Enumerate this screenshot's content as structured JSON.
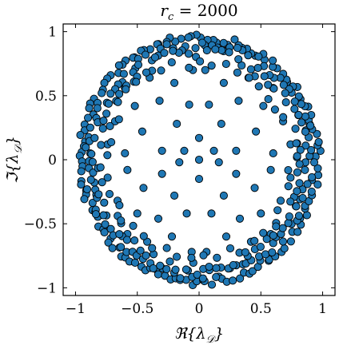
{
  "chart_data": {
    "type": "scatter",
    "title": "r_c = 2000",
    "title_parts": {
      "var": "r",
      "sub": "c",
      "rest": " = 2000"
    },
    "xlabel": "ℜ{λ_𝒟}",
    "xlabel_parts": {
      "op": "ℜ{",
      "var": "λ",
      "sub": "𝒟",
      "close": "}"
    },
    "ylabel": "ℑ{λ_𝒟}",
    "ylabel_parts": {
      "op": "ℑ{",
      "var": "λ",
      "sub": "𝒟",
      "close": "}"
    },
    "xlim": [
      -1.1,
      1.1
    ],
    "ylim": [
      -1.06,
      1.06
    ],
    "xticks": [
      -1,
      -0.5,
      0,
      0.5,
      1
    ],
    "xtick_labels": [
      "−1",
      "−0.5",
      "0",
      "0.5",
      "1"
    ],
    "yticks": [
      -1,
      -0.5,
      0,
      0.5,
      1
    ],
    "ytick_labels": [
      "−1",
      "−0.5",
      "0",
      "0.5",
      "1"
    ],
    "grid": false,
    "marker_color": "#1f77b4",
    "marker_edge": "#000000",
    "points": [
      [
        0.0,
        0.0
      ],
      [
        0.12,
        0.07
      ],
      [
        -0.12,
        0.07
      ],
      [
        0.16,
        -0.02
      ],
      [
        -0.16,
        -0.02
      ],
      [
        0.0,
        0.17
      ],
      [
        0.0,
        -0.15
      ],
      [
        0.3,
        0.07
      ],
      [
        -0.3,
        0.07
      ],
      [
        0.3,
        -0.11
      ],
      [
        -0.3,
        -0.11
      ],
      [
        0.18,
        0.28
      ],
      [
        -0.18,
        0.28
      ],
      [
        0.2,
        -0.28
      ],
      [
        -0.2,
        -0.28
      ],
      [
        0.46,
        0.22
      ],
      [
        -0.46,
        0.22
      ],
      [
        0.45,
        -0.22
      ],
      [
        -0.45,
        -0.22
      ],
      [
        0.08,
        0.43
      ],
      [
        -0.08,
        0.43
      ],
      [
        0.1,
        -0.42
      ],
      [
        -0.1,
        -0.42
      ],
      [
        0.32,
        0.46
      ],
      [
        -0.32,
        0.46
      ],
      [
        0.33,
        -0.46
      ],
      [
        -0.33,
        -0.46
      ],
      [
        0.6,
        0.05
      ],
      [
        -0.6,
        0.05
      ],
      [
        0.58,
        -0.08
      ],
      [
        -0.58,
        -0.08
      ],
      [
        0.2,
        0.6
      ],
      [
        -0.2,
        0.6
      ],
      [
        0.22,
        -0.6
      ],
      [
        -0.22,
        -0.6
      ],
      [
        0.52,
        0.42
      ],
      [
        -0.52,
        0.42
      ],
      [
        0.5,
        -0.42
      ],
      [
        -0.5,
        -0.42
      ],
      [
        0.68,
        0.3
      ],
      [
        -0.68,
        0.3
      ],
      [
        0.66,
        -0.32
      ],
      [
        -0.66,
        -0.32
      ],
      [
        0.4,
        0.64
      ],
      [
        -0.4,
        0.64
      ],
      [
        0.42,
        -0.64
      ],
      [
        -0.42,
        -0.64
      ],
      [
        0.05,
        0.7
      ],
      [
        -0.05,
        0.7
      ],
      [
        0.06,
        -0.72
      ],
      [
        -0.06,
        -0.72
      ],
      [
        0.74,
        0.12
      ],
      [
        -0.74,
        0.12
      ],
      [
        0.74,
        -0.14
      ],
      [
        -0.74,
        -0.14
      ],
      [
        0.6,
        0.56
      ],
      [
        -0.6,
        0.56
      ],
      [
        0.58,
        -0.58
      ],
      [
        -0.58,
        -0.58
      ]
    ],
    "rings": [
      {
        "r": 0.955,
        "n": 140,
        "jitter": 0.03
      },
      {
        "r": 0.9,
        "n": 110,
        "jitter": 0.04
      },
      {
        "r": 0.84,
        "n": 80,
        "jitter": 0.05
      },
      {
        "r": 0.77,
        "n": 45,
        "jitter": 0.05
      }
    ]
  }
}
